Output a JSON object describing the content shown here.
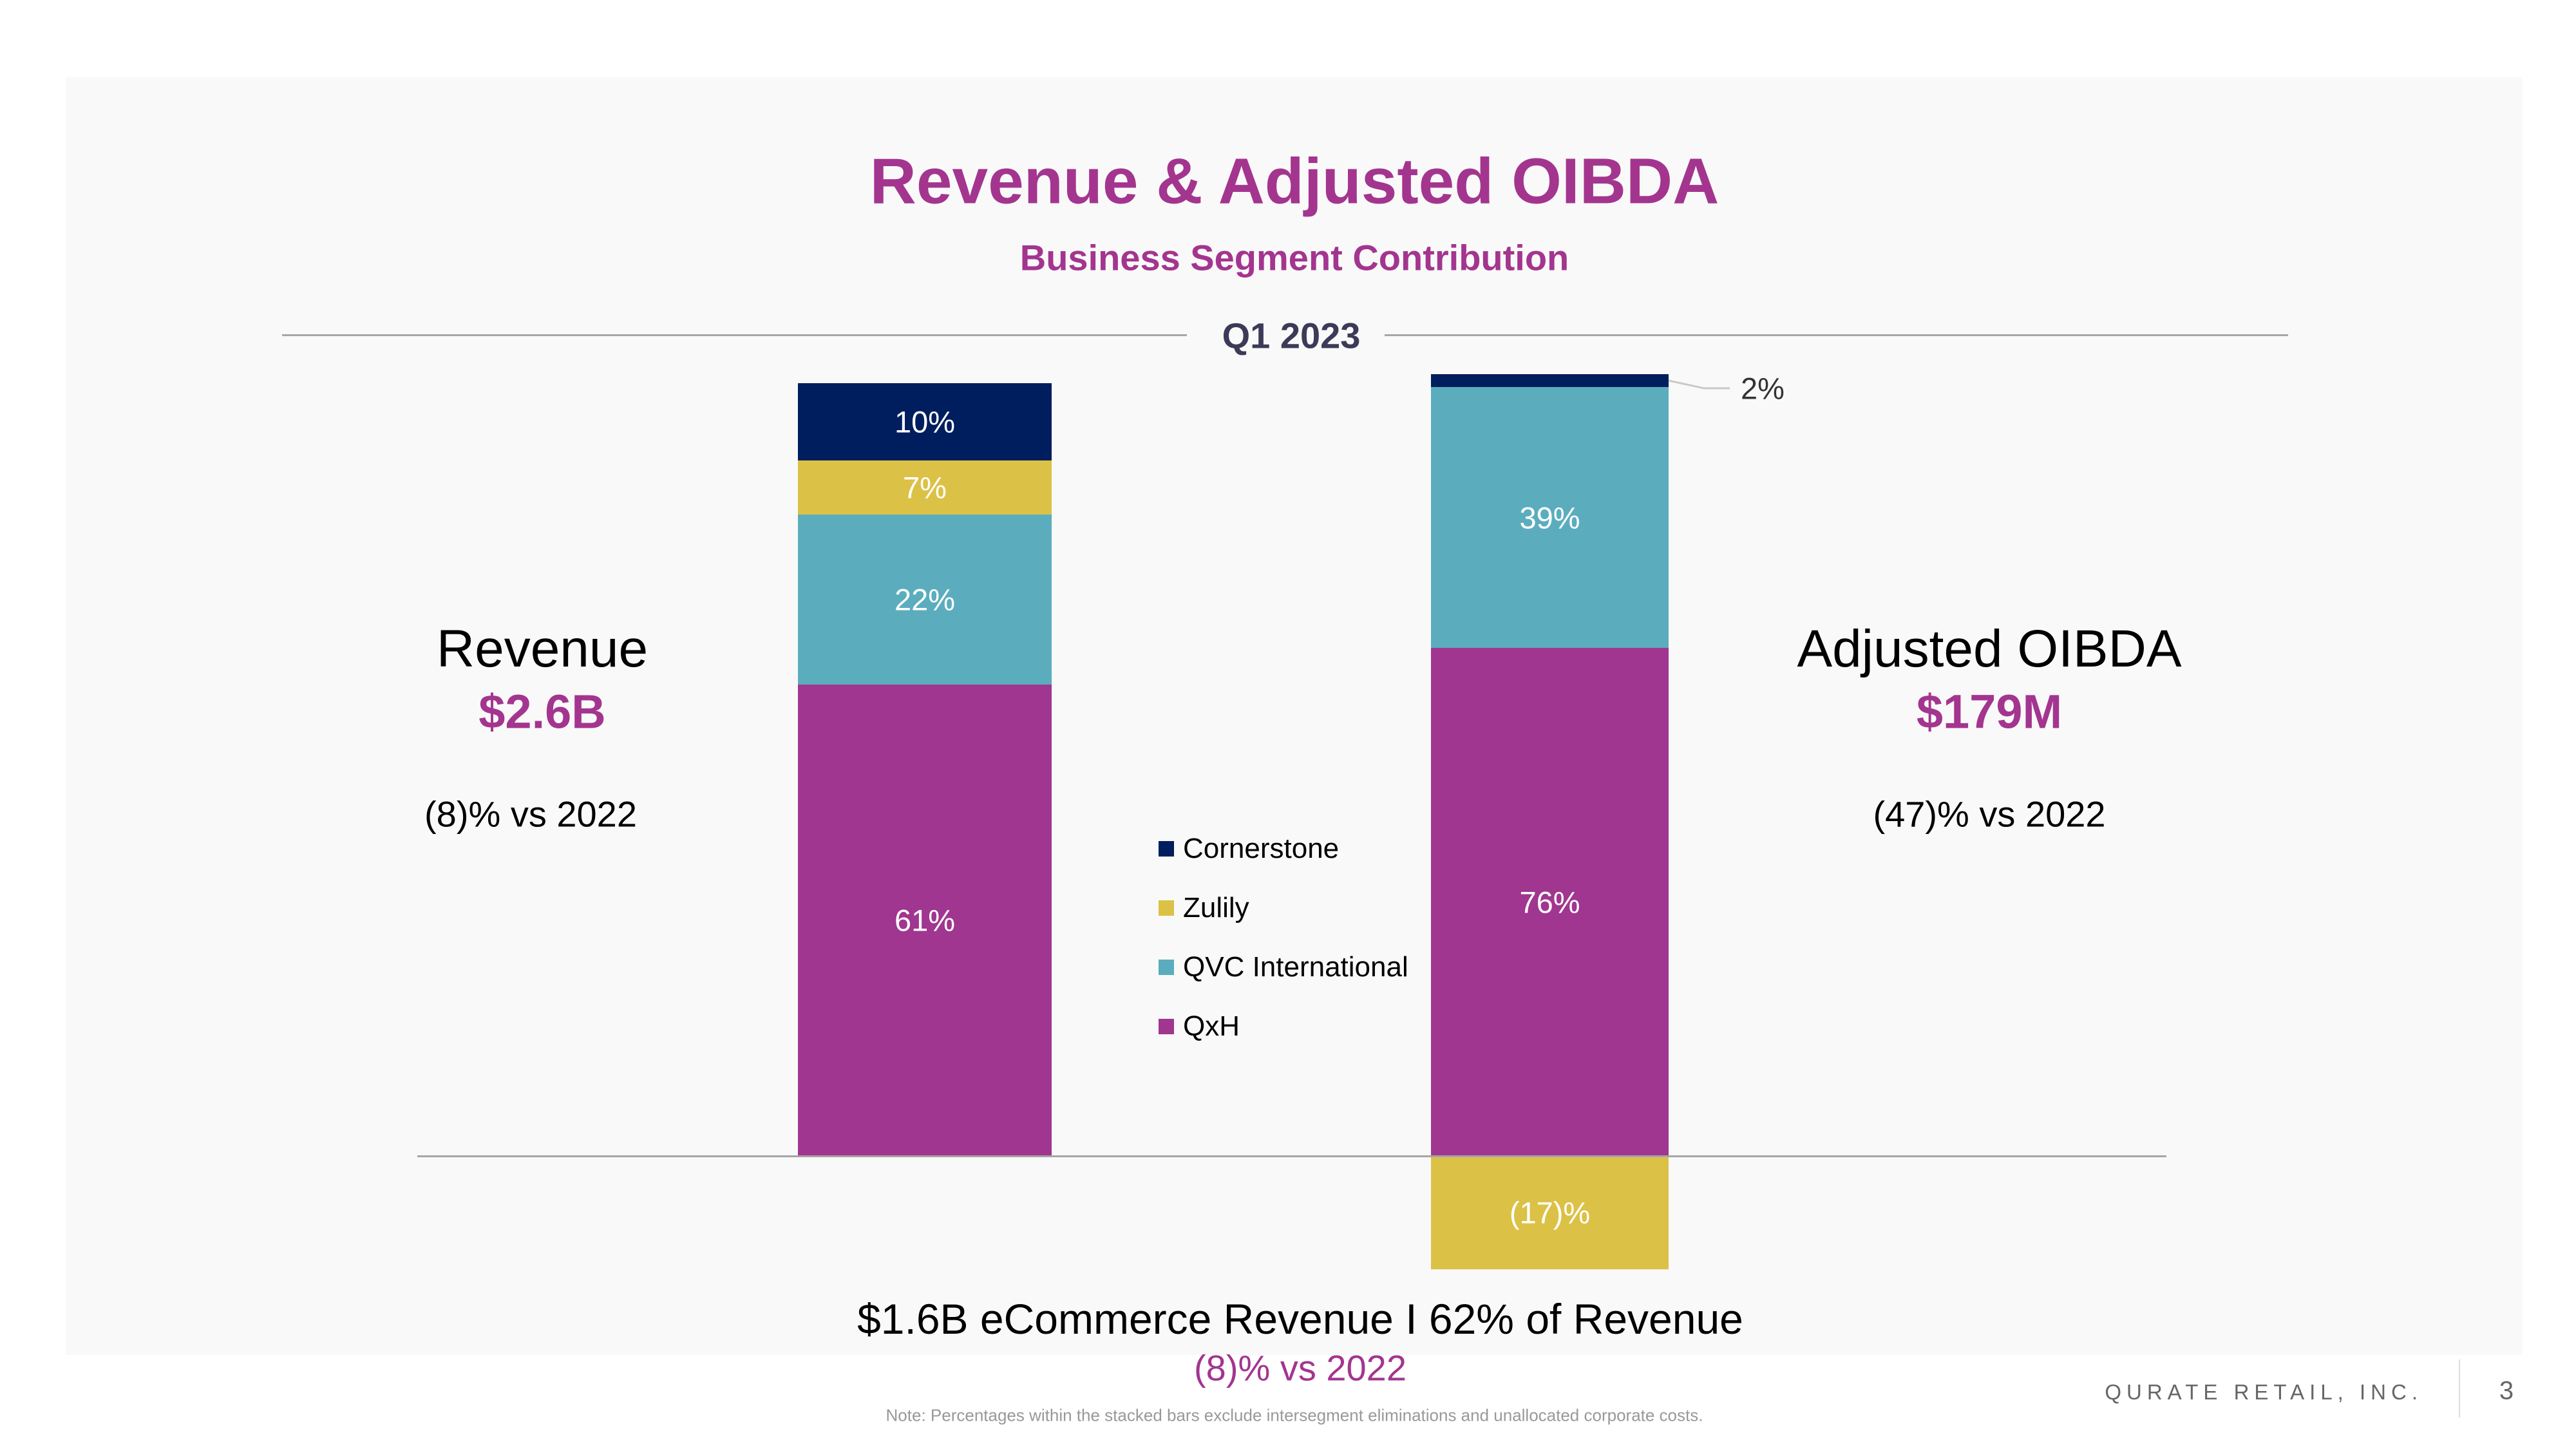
{
  "header": {
    "title": "Revenue & Adjusted OIBDA",
    "subtitle": "Business Segment Contribution",
    "period": "Q1 2023"
  },
  "revenue": {
    "label": "Revenue",
    "value": "$2.6B",
    "comparison": "(8)% vs 2022"
  },
  "oibda": {
    "label": "Adjusted OIBDA",
    "value": "$179M",
    "comparison": "(47)% vs 2022"
  },
  "chart_data": {
    "type": "bar",
    "stacked": true,
    "categories": [
      "Revenue",
      "Adjusted OIBDA"
    ],
    "series": [
      {
        "name": "QxH",
        "color": "#a0368f",
        "values": [
          61,
          76
        ],
        "labels": [
          "61%",
          "76%"
        ]
      },
      {
        "name": "QVC International",
        "color": "#5badbe",
        "values": [
          22,
          39
        ],
        "labels": [
          "22%",
          "39%"
        ]
      },
      {
        "name": "Zulily",
        "color": "#dcc147",
        "values": [
          7,
          -17
        ],
        "labels": [
          "7%",
          "(17)%"
        ]
      },
      {
        "name": "Cornerstone",
        "color": "#001e5e",
        "values": [
          10,
          2
        ],
        "labels": [
          "10%",
          "2%"
        ]
      }
    ],
    "legend": {
      "placement": "center",
      "order": [
        "Cornerstone",
        "Zulily",
        "QVC International",
        "QxH"
      ]
    },
    "grid": false
  },
  "footer": {
    "ecommerce": "$1.6B eCommerce Revenue I 62% of Revenue",
    "ecommerce_comparison": "(8)% vs 2022",
    "note": "Note: Percentages within the stacked bars exclude intersegment eliminations and unallocated corporate costs.",
    "company": "QURATE RETAIL, INC.",
    "page": "3"
  }
}
